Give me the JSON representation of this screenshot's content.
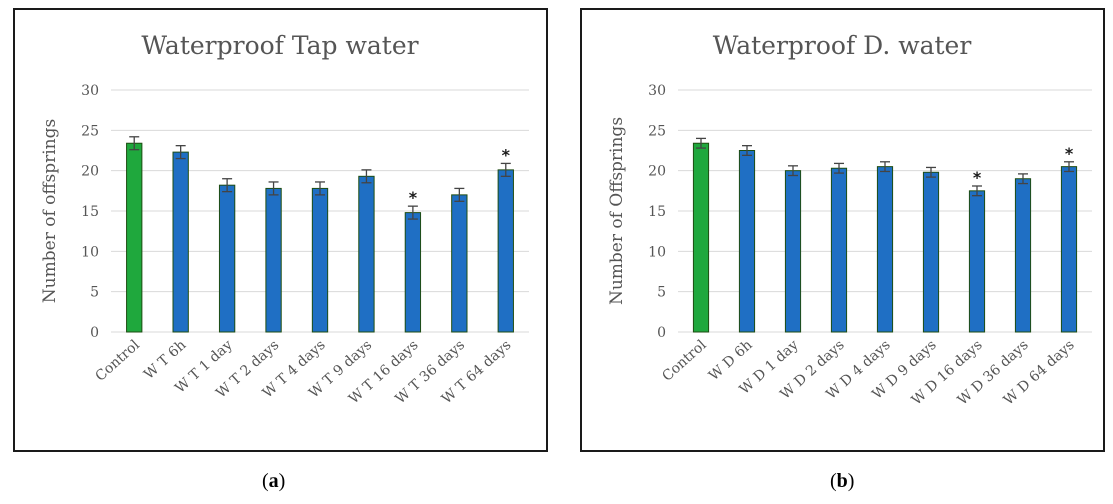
{
  "colors": {
    "control": "#1fa83d",
    "treatment": "#1f6fc4",
    "bar_edge": "#1e4d12",
    "grid": "#d9d9d9",
    "error_bar": "#444444"
  },
  "captions": {
    "a": "a",
    "b": "b"
  },
  "chart_data": [
    {
      "type": "bar",
      "title": "Waterproof Tap water",
      "xlabel": "",
      "ylabel": "Number of offsprings",
      "ylim": [
        0,
        30
      ],
      "yticks": [
        0,
        5,
        10,
        15,
        20,
        25,
        30
      ],
      "grid": true,
      "categories": [
        "Control",
        "W T 6h",
        "W T 1 day",
        "W T 2 days",
        "W T 4 days",
        "W T 9 days",
        "W T 16 days",
        "W T 36 days",
        "W T 64 days"
      ],
      "values": [
        23.4,
        22.3,
        18.2,
        17.8,
        17.8,
        19.3,
        14.8,
        17.0,
        20.1
      ],
      "errors": [
        0.8,
        0.8,
        0.8,
        0.8,
        0.8,
        0.8,
        0.8,
        0.8,
        0.8
      ],
      "bar_colors": [
        "control",
        "treatment",
        "treatment",
        "treatment",
        "treatment",
        "treatment",
        "treatment",
        "treatment",
        "treatment"
      ],
      "significance": [
        "",
        "",
        "",
        "",
        "",
        "",
        "*",
        "",
        "*"
      ]
    },
    {
      "type": "bar",
      "title": "Waterproof D. water",
      "xlabel": "",
      "ylabel": "Number of Offsprings",
      "ylim": [
        0,
        30
      ],
      "yticks": [
        0,
        5,
        10,
        15,
        20,
        25,
        30
      ],
      "grid": true,
      "categories": [
        "Control",
        "W D 6h",
        "W D 1 day",
        "W D 2 days",
        "W D 4 days",
        "W D 9 days",
        "W D 16 days",
        "W D 36 days",
        "W D 64 days"
      ],
      "values": [
        23.4,
        22.5,
        20.0,
        20.3,
        20.5,
        19.8,
        17.5,
        19.0,
        20.5
      ],
      "errors": [
        0.6,
        0.6,
        0.6,
        0.6,
        0.6,
        0.6,
        0.6,
        0.6,
        0.6
      ],
      "bar_colors": [
        "control",
        "treatment",
        "treatment",
        "treatment",
        "treatment",
        "treatment",
        "treatment",
        "treatment",
        "treatment"
      ],
      "significance": [
        "",
        "",
        "",
        "",
        "",
        "",
        "*",
        "",
        "*"
      ]
    }
  ]
}
